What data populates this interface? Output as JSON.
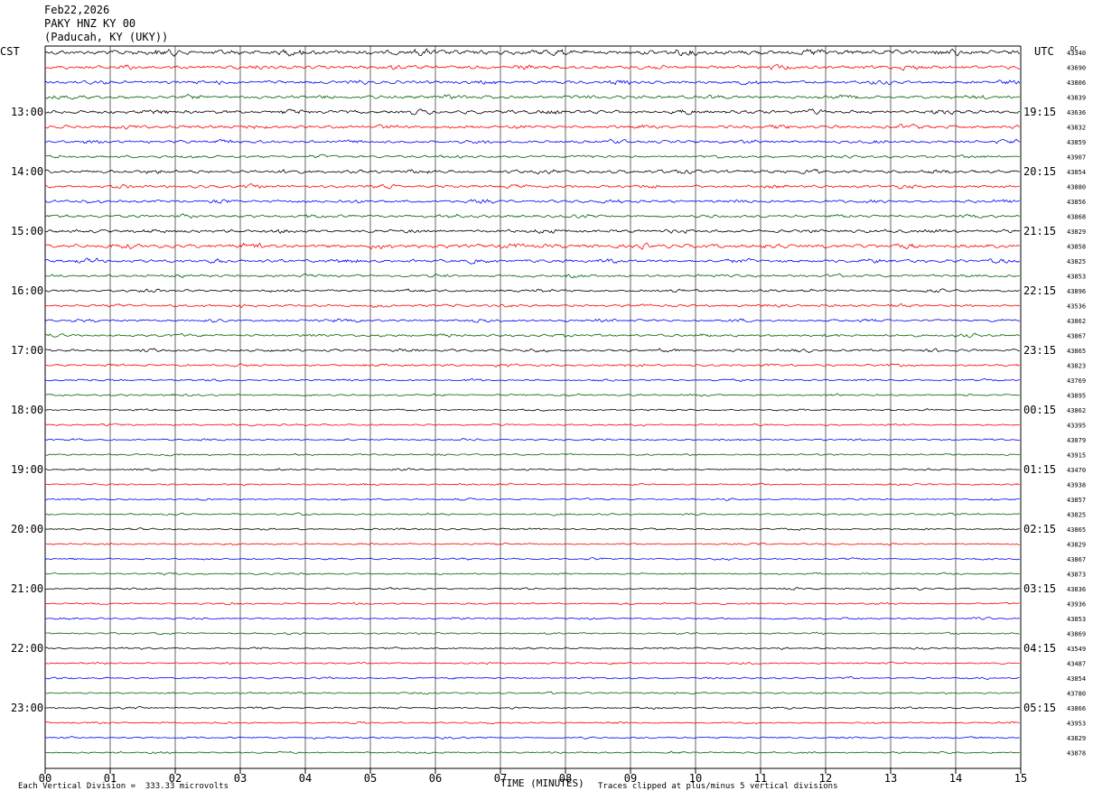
{
  "header": {
    "date": "Feb22,2026",
    "station": "PAKY HNZ KY 00",
    "location": "(Paducah, KY (UKY))"
  },
  "left_timezone": "CST",
  "right_timezone": "UTC",
  "dc_label": "DC",
  "footer": {
    "scale_note": "Each Vertical Division =  333.33 microvolts",
    "xlabel": "TIME (MINUTES)",
    "clip_note": "Traces clipped at plus/minus 5 vertical divisions"
  },
  "colors": {
    "trace_cycle": [
      "#000000",
      "#ff0000",
      "#0000ff",
      "#006400"
    ],
    "grid": "#000000",
    "background": "#ffffff"
  },
  "chart_data": {
    "type": "line",
    "title": "PAKY HNZ KY 00",
    "xlabel": "TIME (MINUTES)",
    "xlim": [
      0,
      15
    ],
    "x_ticks": [
      "00",
      "01",
      "02",
      "03",
      "04",
      "05",
      "06",
      "07",
      "08",
      "09",
      "10",
      "11",
      "12",
      "13",
      "14",
      "15"
    ],
    "left_hour_labels": [
      "13:00",
      "14:00",
      "15:00",
      "16:00",
      "17:00",
      "18:00",
      "19:00",
      "20:00",
      "21:00",
      "22:00",
      "23:00"
    ],
    "right_hour_labels": [
      "19:15",
      "20:15",
      "21:15",
      "22:15",
      "23:15",
      "00:15",
      "01:15",
      "02:15",
      "03:15",
      "04:15",
      "05:15"
    ],
    "rows_per_hour": 4,
    "minutes_per_row": 15,
    "first_row_offset": 4,
    "dc_values": [
      "43340",
      "43690",
      "43806",
      "43839",
      "43636",
      "43832",
      "43859",
      "43907",
      "43854",
      "43880",
      "43856",
      "43868",
      "43829",
      "43858",
      "43825",
      "43853",
      "43896",
      "43536",
      "43862",
      "43867",
      "43865",
      "43823",
      "43769",
      "43895",
      "43862",
      "43395",
      "43079",
      "43915",
      "43470",
      "43938",
      "43857",
      "43825",
      "43865",
      "43829",
      "43867",
      "43873",
      "43836",
      "43936",
      "43853",
      "43869",
      "43549",
      "43487",
      "43854",
      "43780",
      "43866",
      "43953",
      "43829",
      "43878"
    ],
    "trace_amplitude": [
      2.6,
      2.0,
      1.8,
      1.8,
      2.0,
      1.8,
      1.6,
      1.4,
      1.8,
      1.6,
      1.6,
      1.6,
      1.8,
      2.2,
      1.8,
      1.4,
      1.4,
      1.4,
      1.4,
      1.4,
      1.4,
      1.2,
      1.0,
      1.0,
      0.9,
      0.9,
      0.9,
      0.9,
      0.9,
      0.9,
      0.9,
      0.9,
      0.9,
      0.9,
      0.9,
      0.9,
      0.9,
      0.9,
      0.9,
      0.9,
      0.9,
      0.9,
      0.9,
      0.9,
      0.9,
      0.9,
      0.9,
      0.9
    ],
    "grid": true
  }
}
